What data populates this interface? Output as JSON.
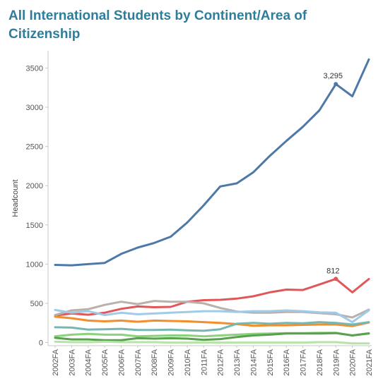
{
  "title": "All International Students by Continent/Area of Citizenship",
  "chart_data": {
    "type": "line",
    "title": "All International Students by Continent/Area of Citizenship",
    "xlabel": "",
    "ylabel": "Headcount",
    "ylim": [
      -40,
      3720
    ],
    "yticks": [
      0,
      500,
      1000,
      1500,
      2000,
      2500,
      3000,
      3500
    ],
    "grid": false,
    "categories": [
      "2002FA",
      "2003FA",
      "2004FA",
      "2005FA",
      "2006FA",
      "2007FA",
      "2008FA",
      "2009FA",
      "2010FA",
      "2011FA",
      "2012FA",
      "2013FA",
      "2014FA",
      "2015FA",
      "2016FA",
      "2017FA",
      "2018FA",
      "2019FA",
      "2020FA",
      "2021FA"
    ],
    "series": [
      {
        "color": "#4e79a7",
        "values": [
          990,
          985,
          1000,
          1015,
          1130,
          1210,
          1270,
          1350,
          1530,
          1750,
          1990,
          2030,
          2170,
          2380,
          2570,
          2750,
          2960,
          3295,
          3140,
          3610
        ]
      },
      {
        "color": "#e15759",
        "values": [
          345,
          370,
          355,
          380,
          430,
          460,
          450,
          455,
          520,
          540,
          545,
          560,
          590,
          640,
          675,
          670,
          740,
          812,
          640,
          810
        ]
      },
      {
        "color": "#bab0ac",
        "values": [
          350,
          410,
          425,
          480,
          520,
          490,
          530,
          520,
          520,
          500,
          440,
          395,
          380,
          380,
          390,
          390,
          375,
          360,
          320,
          420
        ]
      },
      {
        "color": "#a0cbe8",
        "values": [
          415,
          380,
          400,
          350,
          380,
          360,
          370,
          380,
          390,
          400,
          400,
          390,
          400,
          400,
          410,
          400,
          385,
          380,
          260,
          410
        ]
      },
      {
        "color": "#f28e2b",
        "values": [
          330,
          310,
          280,
          270,
          280,
          265,
          280,
          275,
          270,
          260,
          250,
          235,
          215,
          220,
          220,
          225,
          230,
          230,
          210,
          255
        ]
      },
      {
        "color": "#76b7b2",
        "values": [
          195,
          190,
          165,
          170,
          175,
          160,
          160,
          165,
          155,
          150,
          170,
          240,
          250,
          240,
          250,
          245,
          260,
          250,
          230,
          260
        ]
      },
      {
        "color": "#8cd17d",
        "values": [
          80,
          100,
          110,
          100,
          100,
          80,
          85,
          90,
          90,
          80,
          90,
          100,
          110,
          115,
          120,
          120,
          125,
          125,
          90,
          120
        ]
      },
      {
        "color": "#59a14f",
        "values": [
          60,
          40,
          40,
          30,
          30,
          55,
          50,
          55,
          50,
          35,
          45,
          70,
          90,
          100,
          115,
          115,
          115,
          120,
          90,
          115
        ]
      },
      {
        "color": "#b6e3a8",
        "values": [
          10,
          5,
          5,
          10,
          5,
          5,
          5,
          0,
          0,
          0,
          0,
          0,
          0,
          0,
          0,
          0,
          5,
          5,
          -10,
          -10
        ]
      }
    ],
    "annotations": [
      {
        "text": "3,295",
        "category": "2019FA",
        "value": 3295
      },
      {
        "text": "812",
        "category": "2019FA",
        "value": 812
      }
    ]
  }
}
